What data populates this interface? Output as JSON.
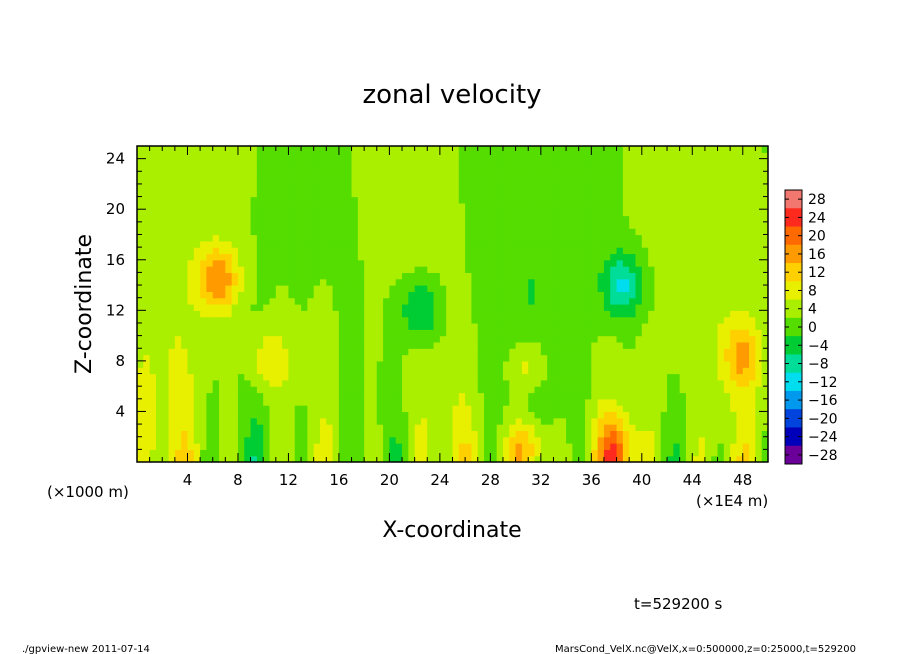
{
  "chart_data": {
    "type": "heatmap",
    "title": "zonal velocity",
    "xlabel": "X-coordinate",
    "ylabel": "Z-coordinate",
    "x_unit_left": "(×1000 m)",
    "x_unit_right": "(×1E4 m)",
    "xlim": [
      0,
      50
    ],
    "ylim": [
      0,
      25
    ],
    "x_ticks": [
      4,
      8,
      12,
      16,
      20,
      24,
      28,
      32,
      36,
      40,
      44,
      48
    ],
    "y_ticks": [
      4,
      8,
      12,
      16,
      20,
      24
    ],
    "colorbar": {
      "levels": [
        28,
        24,
        20,
        16,
        12,
        8,
        4,
        0,
        -4,
        -8,
        -12,
        -16,
        -20,
        -24,
        -28
      ],
      "colors": [
        "#f2776f",
        "#ff2a1e",
        "#ff6a00",
        "#ff9a00",
        "#ffd000",
        "#e8f000",
        "#aaee00",
        "#55dd00",
        "#00cc33",
        "#00dd99",
        "#00ddee",
        "#0099ee",
        "#0044dd",
        "#0000bb",
        "#6a0099"
      ]
    },
    "features": [
      {
        "x": 6.5,
        "z": 14.5,
        "value": 18
      },
      {
        "x": 38.5,
        "z": 14.0,
        "value": -10
      },
      {
        "x": 22.5,
        "z": 12.0,
        "value": -7
      },
      {
        "x": 31.0,
        "z": 7.5,
        "value": 12
      },
      {
        "x": 48.0,
        "z": 8.5,
        "value": 14
      },
      {
        "x": 10.5,
        "z": 8.0,
        "value": 11
      },
      {
        "x": 38.0,
        "z": 1.0,
        "value": 18
      },
      {
        "x": 31.0,
        "z": 1.0,
        "value": 20
      }
    ],
    "time_label": "t=529200 s"
  },
  "footer": {
    "left": "./gpview-new  2011-07-14",
    "right": "MarsCond_VelX.nc@VelX,x=0:500000,z=0:25000,t=529200"
  }
}
